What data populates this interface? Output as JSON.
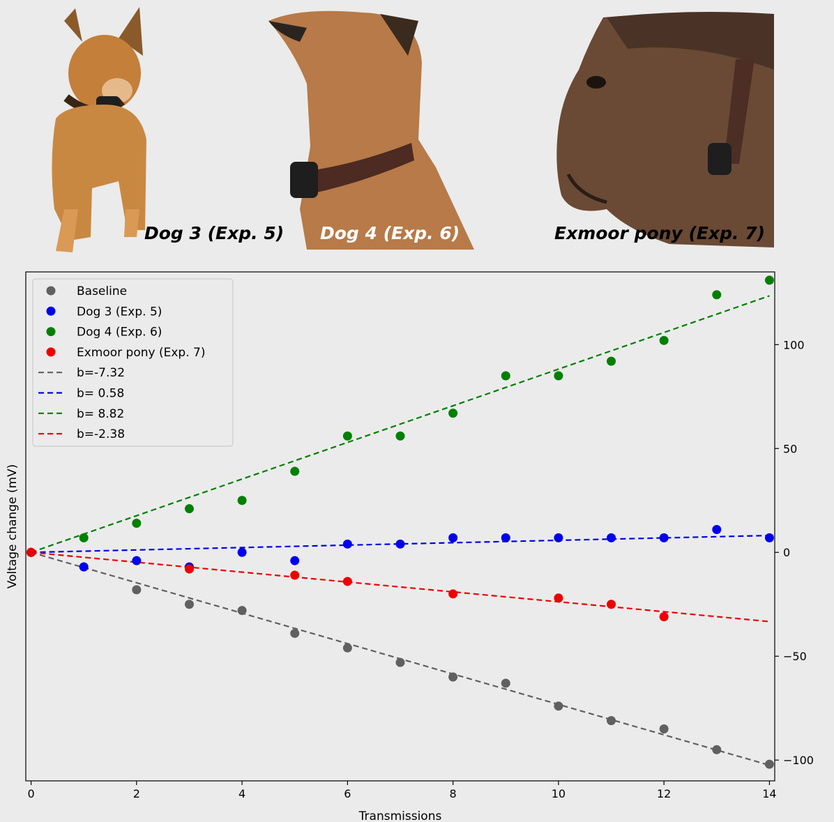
{
  "photos": [
    {
      "caption": "Dog 3 (Exp. 5)",
      "subject": "dog-3-photo"
    },
    {
      "caption": "Dog 4 (Exp. 6)",
      "subject": "dog-4-photo"
    },
    {
      "caption": "Exmoor pony (Exp. 7)",
      "subject": "exmoor-pony-photo"
    }
  ],
  "chart_data": {
    "type": "scatter",
    "xlabel": "Transmissions",
    "ylabel": "Voltage change (mV)",
    "xlim": [
      -0.1,
      14.1
    ],
    "ylim": [
      -110,
      135
    ],
    "x_ticks": [
      0,
      2,
      4,
      6,
      8,
      10,
      12,
      14
    ],
    "y_ticks": [
      -100,
      -50,
      0,
      50,
      100
    ],
    "y_axis_side": "right",
    "grid": false,
    "legend_position": "upper-left",
    "series": [
      {
        "name": "Baseline",
        "color": "#606060",
        "points": [
          [
            0,
            0
          ],
          [
            1,
            -7
          ],
          [
            2,
            -18
          ],
          [
            3,
            -25
          ],
          [
            4,
            -28
          ],
          [
            5,
            -39
          ],
          [
            6,
            -46
          ],
          [
            7,
            -53
          ],
          [
            8,
            -60
          ],
          [
            9,
            -63
          ],
          [
            10,
            -74
          ],
          [
            11,
            -81
          ],
          [
            12,
            -85
          ],
          [
            13,
            -95
          ],
          [
            14,
            -102
          ]
        ]
      },
      {
        "name": "Dog 3 (Exp. 5)",
        "color": "#0000ee",
        "points": [
          [
            0,
            0
          ],
          [
            1,
            -7
          ],
          [
            2,
            -4
          ],
          [
            3,
            -7
          ],
          [
            4,
            0
          ],
          [
            5,
            -4
          ],
          [
            6,
            4
          ],
          [
            7,
            4
          ],
          [
            8,
            7
          ],
          [
            9,
            7
          ],
          [
            10,
            7
          ],
          [
            11,
            7
          ],
          [
            12,
            7
          ],
          [
            13,
            11
          ],
          [
            14,
            7
          ]
        ]
      },
      {
        "name": "Dog 4 (Exp. 6)",
        "color": "#008000",
        "points": [
          [
            0,
            0
          ],
          [
            1,
            7
          ],
          [
            2,
            14
          ],
          [
            3,
            21
          ],
          [
            4,
            25
          ],
          [
            5,
            39
          ],
          [
            6,
            56
          ],
          [
            7,
            56
          ],
          [
            8,
            67
          ],
          [
            9,
            85
          ],
          [
            10,
            85
          ],
          [
            11,
            92
          ],
          [
            12,
            102
          ],
          [
            13,
            124
          ],
          [
            14,
            131
          ]
        ]
      },
      {
        "name": "Exmoor pony (Exp. 7)",
        "color": "#ee0000",
        "points": [
          [
            0,
            0
          ],
          [
            3,
            -8
          ],
          [
            5,
            -11
          ],
          [
            6,
            -14
          ],
          [
            8,
            -20
          ],
          [
            10,
            -22
          ],
          [
            11,
            -25
          ],
          [
            12,
            -31
          ]
        ]
      }
    ],
    "fits": [
      {
        "label": "b=-7.32",
        "slope": -7.32,
        "color": "#606060"
      },
      {
        "label": "b= 0.58",
        "slope": 0.58,
        "color": "#0000ee"
      },
      {
        "label": "b= 8.82",
        "slope": 8.82,
        "color": "#008000"
      },
      {
        "label": "b=-2.38",
        "slope": -2.38,
        "color": "#ee0000"
      }
    ]
  }
}
